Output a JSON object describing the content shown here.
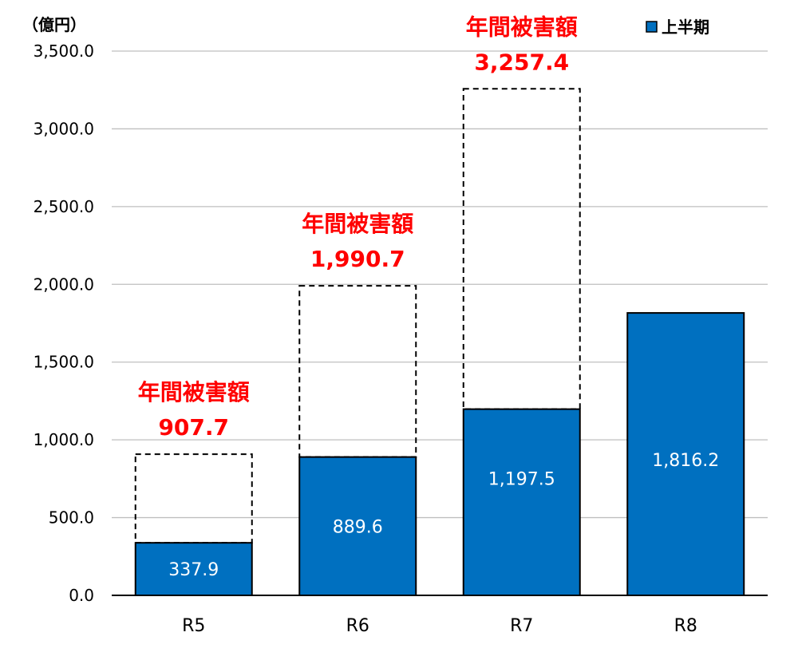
{
  "chart_data": {
    "type": "bar",
    "unit_label": "（億円）",
    "categories": [
      "R5",
      "R6",
      "R7",
      "R8"
    ],
    "series": [
      {
        "name": "上半期",
        "values": [
          337.9,
          889.6,
          1197.5,
          1816.2
        ]
      }
    ],
    "annual_totals": [
      907.7,
      1990.7,
      3257.4,
      null
    ],
    "annual_label": "年間被害額",
    "value_labels": [
      "337.9",
      "889.6",
      "1,197.5",
      "1,816.2"
    ],
    "annual_value_labels": [
      "907.7",
      "1,990.7",
      "3,257.4",
      ""
    ],
    "ylim": [
      0,
      3500
    ],
    "y_ticks": [
      0,
      500,
      1000,
      1500,
      2000,
      2500,
      3000,
      3500
    ],
    "y_tick_labels": [
      "0.0",
      "500.0",
      "1,000.0",
      "1,500.0",
      "2,000.0",
      "2,500.0",
      "3,000.0",
      "3,500.0"
    ],
    "grid": true,
    "legend_position": "top-right",
    "colors": {
      "bar": "#0070C0",
      "annotation": "#FF0000",
      "grid": "#BFBFBF",
      "axis": "#000000"
    }
  }
}
